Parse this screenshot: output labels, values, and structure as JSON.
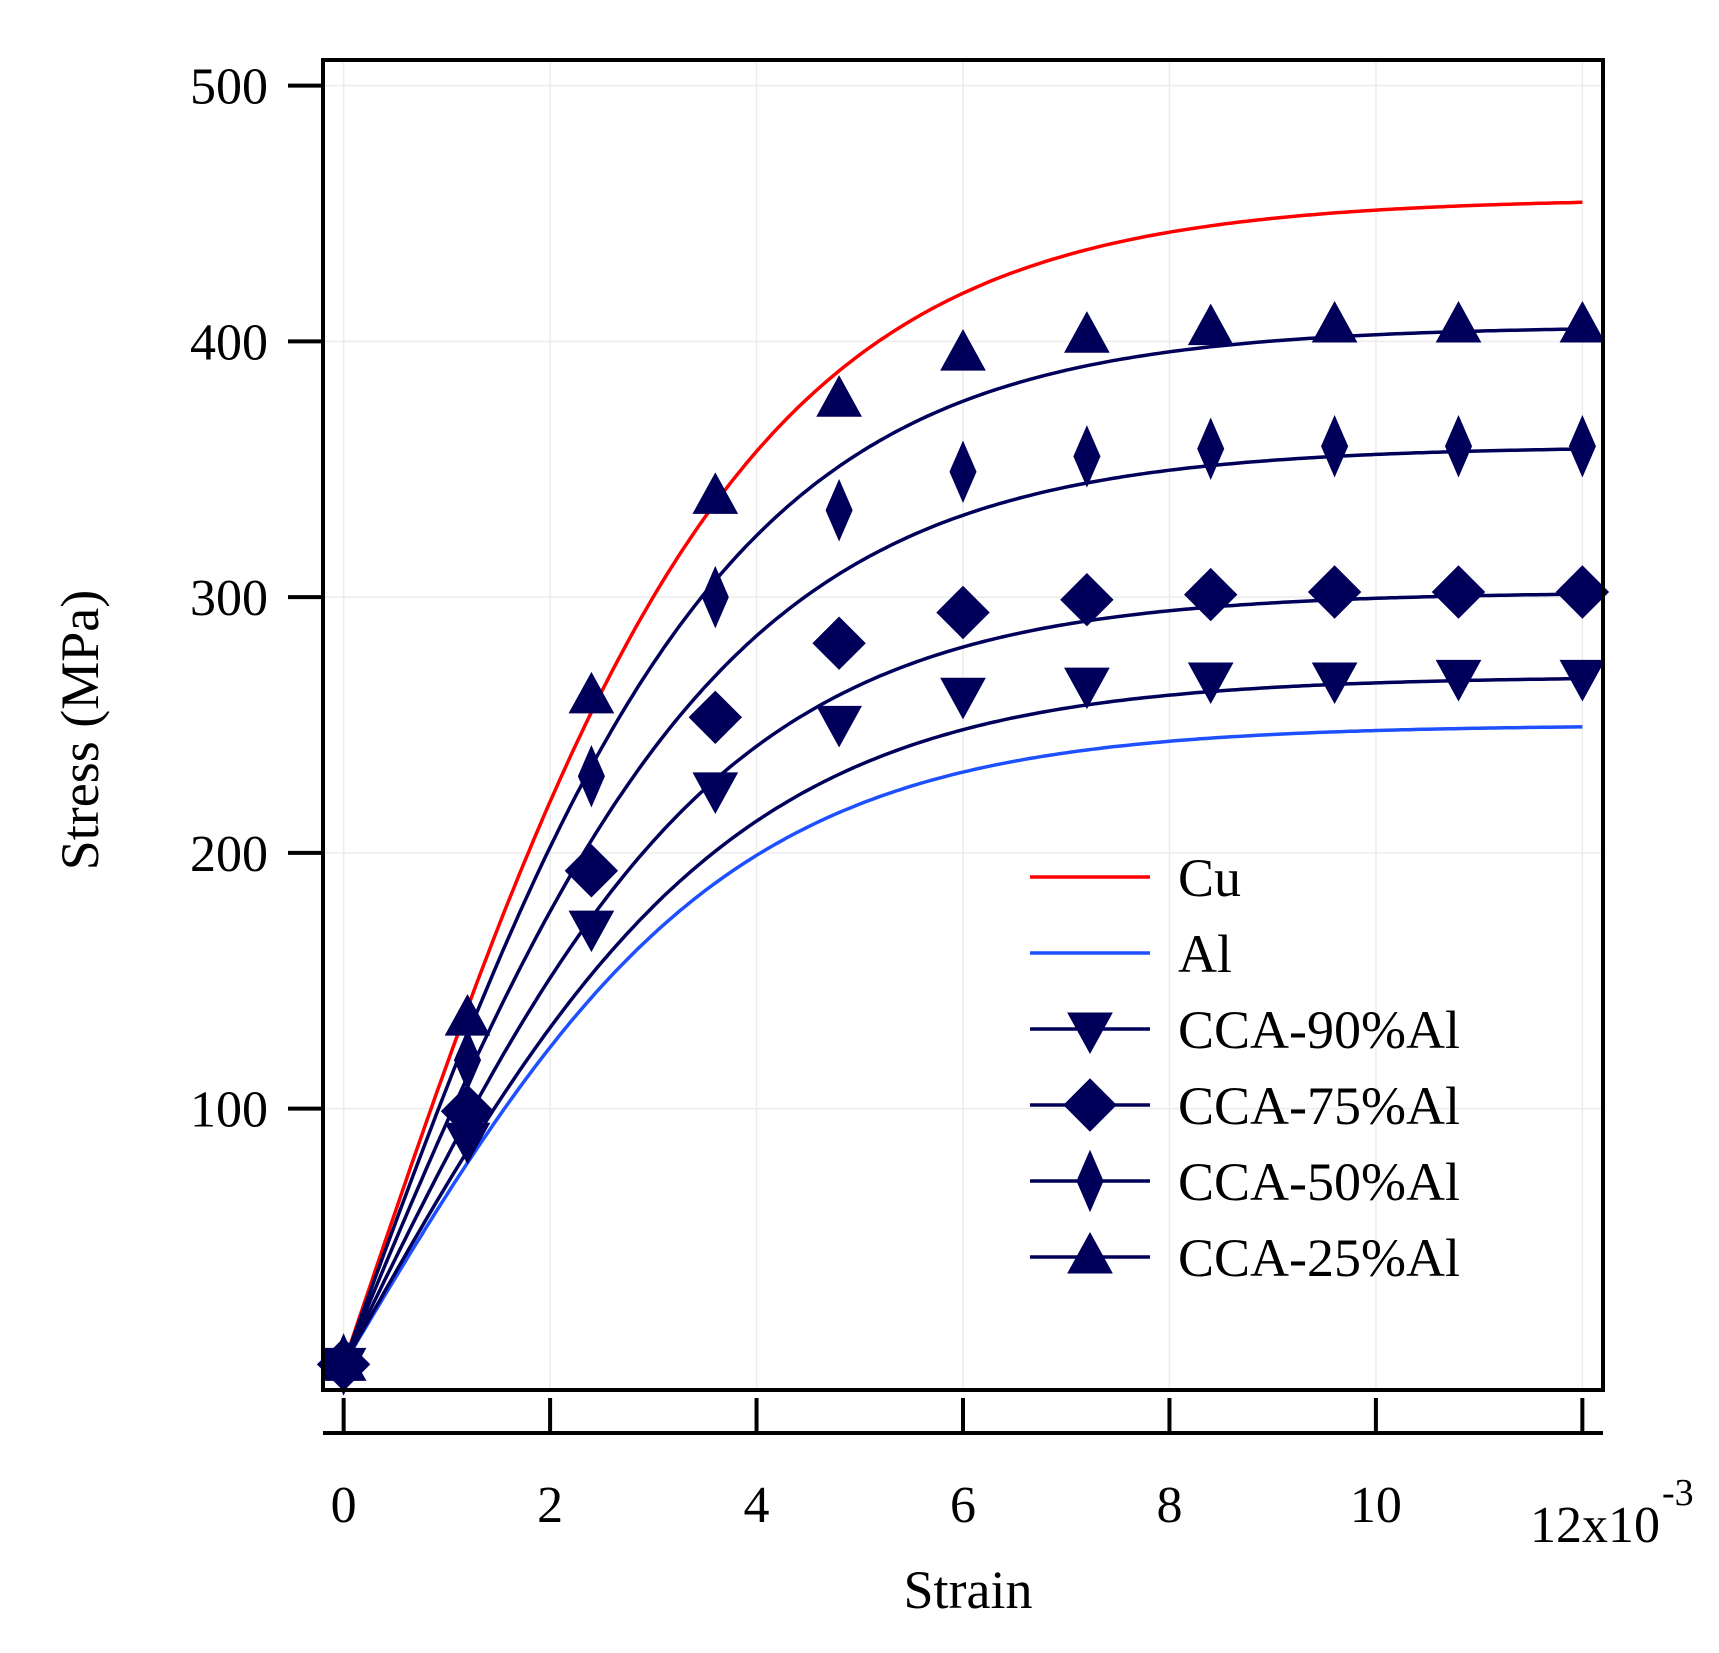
{
  "chart_data": {
    "type": "line",
    "title": "",
    "xlabel": "Strain",
    "ylabel": "Stress (MPa)",
    "x_scale_label": "12x10",
    "x_scale_exponent": "-3",
    "xlim": [
      -0.0002,
      0.0122
    ],
    "ylim": [
      -10,
      510
    ],
    "xticks": [
      0,
      0.002,
      0.004,
      0.006,
      0.008,
      0.01,
      0.012
    ],
    "xtick_labels": [
      "0",
      "2",
      "4",
      "6",
      "8",
      "10",
      ""
    ],
    "yticks": [
      100,
      200,
      300,
      400,
      500
    ],
    "ytick_labels": [
      "100",
      "200",
      "300",
      "400",
      "500"
    ],
    "grid": true,
    "legend_position": "lower-right",
    "x": [
      0,
      0.0012,
      0.0024,
      0.0036,
      0.0048,
      0.006,
      0.0072,
      0.0084,
      0.0096,
      0.0108,
      0.012
    ],
    "series": [
      {
        "name": "Cu",
        "color": "#ff0000",
        "marker": "none",
        "sigma": 456,
        "modulus": 120000
      },
      {
        "name": "Al",
        "color": "#1e50ff",
        "marker": "none",
        "sigma": 250,
        "modulus": 68000
      },
      {
        "name": "CCA-90%Al",
        "color": "#00005a",
        "marker": "triangle-down",
        "sigma": 269,
        "modulus": 72000,
        "values": [
          0,
          88,
          171,
          225,
          251,
          262,
          266,
          268,
          268,
          269,
          269
        ]
      },
      {
        "name": "CCA-75%Al",
        "color": "#00005a",
        "marker": "diamond",
        "sigma": 302,
        "modulus": 83000,
        "values": [
          0,
          99,
          193,
          253,
          282,
          294,
          299,
          301,
          302,
          302,
          302
        ]
      },
      {
        "name": "CCA-50%Al",
        "color": "#00005a",
        "marker": "thin-diamond",
        "sigma": 359,
        "modulus": 97000,
        "values": [
          0,
          119,
          230,
          300,
          334,
          349,
          355,
          358,
          359,
          359,
          359
        ]
      },
      {
        "name": "CCA-25%Al",
        "color": "#00005a",
        "marker": "triangle-up",
        "sigma": 406,
        "modulus": 111000,
        "values": [
          0,
          135,
          261,
          339,
          377,
          395,
          402,
          405,
          406,
          406,
          406
        ]
      }
    ]
  }
}
